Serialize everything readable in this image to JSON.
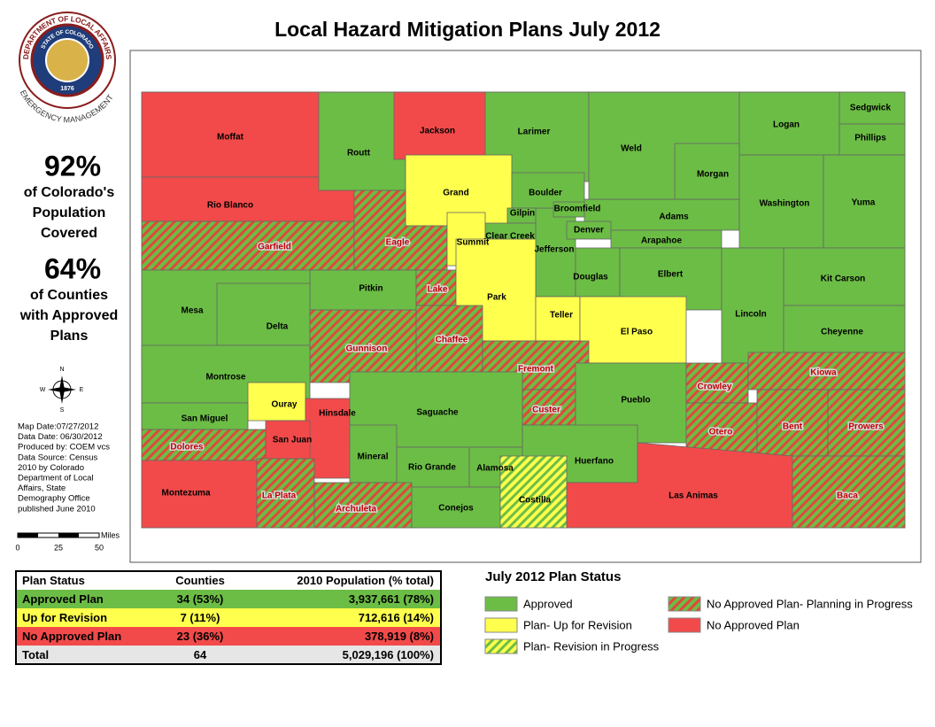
{
  "title": "Local Hazard Mitigation Plans July 2012",
  "logo": {
    "top": "DEPARTMENT OF LOCAL AFFAIRS",
    "inner": "STATE OF COLORADO",
    "year": "1876",
    "bottom": "EMERGENCY MANAGEMENT"
  },
  "stats": [
    {
      "value": "92%",
      "lines": [
        "of Colorado's",
        "Population",
        "Covered"
      ]
    },
    {
      "value": "64%",
      "lines": [
        "of Counties",
        "with Approved",
        "Plans"
      ]
    }
  ],
  "compass": {
    "n": "N",
    "e": "E",
    "s": "S",
    "w": "W"
  },
  "metadata": [
    "Map Date:07/27/2012",
    "Data Date: 06/30/2012",
    "Produced by: COEM vcs",
    "Data Source: Census",
    "2010 by Colorado",
    "Department of Local",
    "Affairs, State",
    "Demography Office",
    "published June 2010"
  ],
  "scale": {
    "unit": "Miles",
    "labels": [
      "0",
      "25",
      "50"
    ]
  },
  "statuses": {
    "approved": {
      "fill": "#6cbd45"
    },
    "revision": {
      "fill": "#ffff4d"
    },
    "revision-progress": {
      "fill": "#ffff4d",
      "hatch": "#6cbd45"
    },
    "planning": {
      "fill": "#6cbd45",
      "hatch": "#e0483c"
    },
    "none": {
      "fill": "#f24a4a"
    }
  },
  "counties": [
    {
      "name": "Moffat",
      "status": "none"
    },
    {
      "name": "Rio Blanco",
      "status": "none"
    },
    {
      "name": "Garfield",
      "status": "planning"
    },
    {
      "name": "Routt",
      "status": "approved"
    },
    {
      "name": "Larimer",
      "status": "approved"
    },
    {
      "name": "Jackson",
      "status": "none"
    },
    {
      "name": "Grand",
      "status": "revision"
    },
    {
      "name": "Eagle",
      "status": "planning"
    },
    {
      "name": "Jefferson",
      "status": "approved"
    },
    {
      "name": "Boulder",
      "status": "approved"
    },
    {
      "name": "Gilpin",
      "status": "approved"
    },
    {
      "name": "Clear Creek",
      "status": "approved"
    },
    {
      "name": "Broomfield",
      "status": "approved"
    },
    {
      "name": "Adams",
      "status": "approved"
    },
    {
      "name": "Denver",
      "status": "approved"
    },
    {
      "name": "Arapahoe",
      "status": "approved"
    },
    {
      "name": "Summit",
      "status": "revision"
    },
    {
      "name": "Weld",
      "status": "approved"
    },
    {
      "name": "Logan",
      "status": "approved"
    },
    {
      "name": "Sedgwick",
      "status": "approved"
    },
    {
      "name": "Phillips",
      "status": "approved"
    },
    {
      "name": "Morgan",
      "status": "approved"
    },
    {
      "name": "Washington",
      "status": "approved"
    },
    {
      "name": "Yuma",
      "status": "approved"
    },
    {
      "name": "Pitkin",
      "status": "approved"
    },
    {
      "name": "Lake",
      "status": "planning"
    },
    {
      "name": "Park",
      "status": "revision"
    },
    {
      "name": "Douglas",
      "status": "approved"
    },
    {
      "name": "Elbert",
      "status": "approved"
    },
    {
      "name": "Kit Carson",
      "status": "approved"
    },
    {
      "name": "Lincoln",
      "status": "approved"
    },
    {
      "name": "Cheyenne",
      "status": "approved"
    },
    {
      "name": "Teller",
      "status": "revision"
    },
    {
      "name": "El Paso",
      "status": "revision"
    },
    {
      "name": "Mesa",
      "status": "approved"
    },
    {
      "name": "Delta",
      "status": "approved"
    },
    {
      "name": "Gunnison",
      "status": "planning"
    },
    {
      "name": "Chaffee",
      "status": "planning"
    },
    {
      "name": "Fremont",
      "status": "planning"
    },
    {
      "name": "Montrose",
      "status": "approved"
    },
    {
      "name": "Ouray",
      "status": "revision"
    },
    {
      "name": "San Miguel",
      "status": "approved"
    },
    {
      "name": "Hinsdale",
      "status": "none"
    },
    {
      "name": "Saguache",
      "status": "approved"
    },
    {
      "name": "Custer",
      "status": "planning"
    },
    {
      "name": "Pueblo",
      "status": "approved"
    },
    {
      "name": "Crowley",
      "status": "planning"
    },
    {
      "name": "Kiowa",
      "status": "planning"
    },
    {
      "name": "Otero",
      "status": "planning"
    },
    {
      "name": "Bent",
      "status": "planning"
    },
    {
      "name": "Prowers",
      "status": "planning"
    },
    {
      "name": "Dolores",
      "status": "planning"
    },
    {
      "name": "San Juan",
      "status": "none"
    },
    {
      "name": "Mineral",
      "status": "approved"
    },
    {
      "name": "Rio Grande",
      "status": "approved"
    },
    {
      "name": "Alamosa",
      "status": "approved"
    },
    {
      "name": "Huerfano",
      "status": "approved"
    },
    {
      "name": "Montezuma",
      "status": "none"
    },
    {
      "name": "La Plata",
      "status": "planning"
    },
    {
      "name": "Archuleta",
      "status": "planning"
    },
    {
      "name": "Conejos",
      "status": "approved"
    },
    {
      "name": "Costilla",
      "status": "revision-progress"
    },
    {
      "name": "Las Animas",
      "status": "none"
    },
    {
      "name": "Baca",
      "status": "planning"
    }
  ],
  "table": {
    "header": [
      "Plan Status",
      "Counties",
      "2010 Population (% total)"
    ],
    "rows": [
      {
        "cells": [
          "Approved Plan",
          "34 (53%)",
          "3,937,661 (78%)"
        ],
        "status": "approved"
      },
      {
        "cells": [
          "Up for Revision",
          "7 (11%)",
          "712,616 (14%)"
        ],
        "status": "revision"
      },
      {
        "cells": [
          "No Approved Plan",
          "23 (36%)",
          "378,919  (8%)"
        ],
        "status": "none"
      },
      {
        "cells": [
          "Total",
          "64",
          "5,029,196 (100%)"
        ]
      }
    ]
  },
  "legend": {
    "title": "July 2012 Plan Status",
    "items": [
      {
        "label": "Approved",
        "status": "approved"
      },
      {
        "label": "Plan- Up for Revision",
        "status": "revision"
      },
      {
        "label": "Plan- Revision in Progress",
        "status": "revision-progress"
      },
      {
        "label": "No Approved Plan- Planning in Progress",
        "status": "planning"
      },
      {
        "label": "No Approved Plan",
        "status": "none"
      }
    ]
  }
}
